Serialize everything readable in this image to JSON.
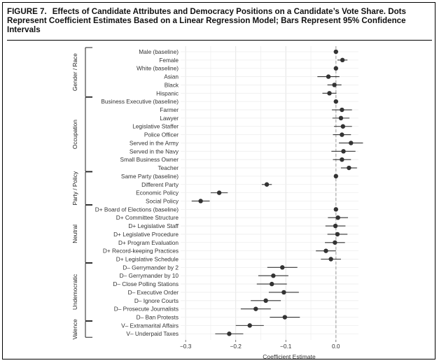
{
  "figure": {
    "number": "FIGURE 7.",
    "caption": "Effects of Candidate Attributes and Democracy Positions on a Candidate’s Vote Share. Dots Represent Coefficient Estimates Based on a Linear Regression Model; Bars Represent 95% Confidence Intervals"
  },
  "chart_data": {
    "type": "scatter",
    "subtype": "coefficient-plot-with-confidence-intervals",
    "xlabel": "Coefficient Estimate",
    "xlim": [
      -0.31,
      0.045
    ],
    "xticks": [
      -0.3,
      -0.2,
      -0.1,
      0.0
    ],
    "xtick_labels": [
      "−0.3",
      "−0.2",
      "−0.1",
      "0.0"
    ],
    "reference_line": 0,
    "grid": true,
    "colors": {
      "point": "#333333",
      "ci": "#333333",
      "grid": "#e6e6e6",
      "reference": "#aaaaaa"
    },
    "groups": [
      {
        "name": "Gender / Race",
        "items": [
          {
            "label": "Male (baseline)",
            "est": 0.0,
            "lo": 0.0,
            "hi": 0.0
          },
          {
            "label": "Female",
            "est": 0.013,
            "lo": 0.003,
            "hi": 0.023
          },
          {
            "label": "White (baseline)",
            "est": 0.0,
            "lo": 0.0,
            "hi": 0.0
          },
          {
            "label": "Asian",
            "est": -0.015,
            "lo": -0.037,
            "hi": 0.007
          },
          {
            "label": "Black",
            "est": -0.003,
            "lo": -0.017,
            "hi": 0.011
          },
          {
            "label": "Hispanic",
            "est": -0.013,
            "lo": -0.027,
            "hi": 0.001
          }
        ]
      },
      {
        "name": "Occupation",
        "items": [
          {
            "label": "Business Executive (baseline)",
            "est": 0.0,
            "lo": 0.0,
            "hi": 0.0
          },
          {
            "label": "Farmer",
            "est": 0.012,
            "lo": -0.008,
            "hi": 0.032
          },
          {
            "label": "Lawyer",
            "est": 0.01,
            "lo": -0.007,
            "hi": 0.027
          },
          {
            "label": "Legislative Staffer",
            "est": 0.014,
            "lo": -0.004,
            "hi": 0.032
          },
          {
            "label": "Police Officer",
            "est": 0.012,
            "lo": -0.006,
            "hi": 0.03
          },
          {
            "label": "Served in the Army",
            "est": 0.03,
            "lo": 0.006,
            "hi": 0.054
          },
          {
            "label": "Served in the Navy",
            "est": 0.015,
            "lo": -0.009,
            "hi": 0.039
          },
          {
            "label": "Small Business Owner",
            "est": 0.012,
            "lo": -0.006,
            "hi": 0.03
          },
          {
            "label": "Teacher",
            "est": 0.026,
            "lo": 0.01,
            "hi": 0.042
          }
        ]
      },
      {
        "name": "Party / Policy",
        "items": [
          {
            "label": "Same Party (baseline)",
            "est": 0.0,
            "lo": 0.0,
            "hi": 0.0
          },
          {
            "label": "Different Party",
            "est": -0.138,
            "lo": -0.148,
            "hi": -0.128
          },
          {
            "label": "Economic Policy",
            "est": -0.233,
            "lo": -0.25,
            "hi": -0.216
          },
          {
            "label": "Social Policy",
            "est": -0.27,
            "lo": -0.288,
            "hi": -0.252
          }
        ]
      },
      {
        "name": "Neutral",
        "items": [
          {
            "label": "D+ Board of Elections (baseline)",
            "est": 0.0,
            "lo": 0.0,
            "hi": 0.0
          },
          {
            "label": "D+ Committee Structure",
            "est": 0.004,
            "lo": -0.016,
            "hi": 0.024
          },
          {
            "label": "D+ Legislative Staff",
            "est": -0.001,
            "lo": -0.021,
            "hi": 0.019
          },
          {
            "label": "D+ Legislative Procedure",
            "est": 0.003,
            "lo": -0.017,
            "hi": 0.023
          },
          {
            "label": "D+ Program Evaluation",
            "est": -0.002,
            "lo": -0.022,
            "hi": 0.018
          },
          {
            "label": "D+ Record-keeping Practices",
            "est": -0.02,
            "lo": -0.04,
            "hi": 0.0
          },
          {
            "label": "D+ Legislative Schedule",
            "est": -0.01,
            "lo": -0.03,
            "hi": 0.01
          }
        ]
      },
      {
        "name": "Undemocratic",
        "items": [
          {
            "label": "D– Gerrymander by 2",
            "est": -0.107,
            "lo": -0.137,
            "hi": -0.077
          },
          {
            "label": "D– Gerrymander by 10",
            "est": -0.125,
            "lo": -0.155,
            "hi": -0.095
          },
          {
            "label": "D– Close Polling Stations",
            "est": -0.128,
            "lo": -0.158,
            "hi": -0.098
          },
          {
            "label": "D– Executive Order",
            "est": -0.104,
            "lo": -0.134,
            "hi": -0.074
          },
          {
            "label": "D– Ignore Courts",
            "est": -0.14,
            "lo": -0.17,
            "hi": -0.11
          },
          {
            "label": "D– Prosecute Journalists",
            "est": -0.16,
            "lo": -0.19,
            "hi": -0.13
          },
          {
            "label": "D– Ban Protests",
            "est": -0.102,
            "lo": -0.132,
            "hi": -0.072
          }
        ]
      },
      {
        "name": "Valence",
        "items": [
          {
            "label": "V– Extramarital Affairs",
            "est": -0.172,
            "lo": -0.2,
            "hi": -0.144
          },
          {
            "label": "V– Underpaid Taxes",
            "est": -0.213,
            "lo": -0.241,
            "hi": -0.185
          }
        ]
      }
    ]
  }
}
